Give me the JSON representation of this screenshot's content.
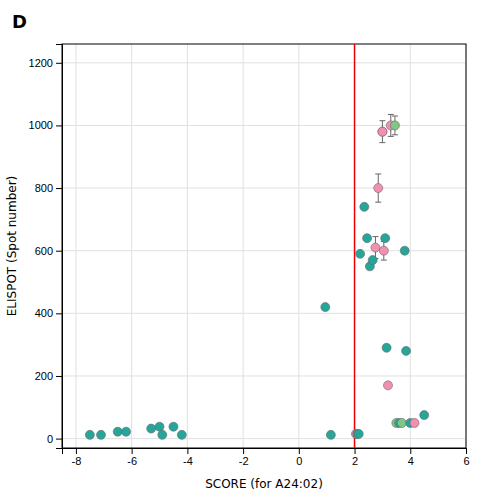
{
  "chart_data": {
    "type": "scatter",
    "title": "D",
    "xlabel": "SCORE (for A24:02)",
    "ylabel": "ELISPOT (Spot number)",
    "xlim": [
      -8.5,
      6.0
    ],
    "ylim": [
      -30,
      1260
    ],
    "xticks": [
      -8,
      -6,
      -4,
      -2,
      0,
      2,
      4,
      6
    ],
    "yticks": [
      0,
      200,
      400,
      600,
      800,
      1000,
      1200
    ],
    "grid": true,
    "vline": {
      "x": 2,
      "color": "#ee0000"
    },
    "x": [
      -7.5,
      -7.1,
      -6.5,
      -6.2,
      -5.3,
      -5.0,
      -4.9,
      -4.5,
      -4.2,
      0.95,
      1.15,
      2.05,
      2.1,
      2.15,
      2.2,
      2.35,
      2.45,
      2.55,
      2.65,
      2.75,
      2.85,
      3.0,
      3.0,
      3.05,
      3.1,
      3.15,
      3.2,
      3.3,
      3.45,
      3.5,
      3.6,
      3.7,
      3.8,
      3.85,
      4.0,
      4.15,
      4.5
    ],
    "values": [
      12,
      12,
      22,
      22,
      32,
      38,
      12,
      38,
      12,
      420,
      12,
      15,
      15,
      15,
      590,
      740,
      640,
      550,
      570,
      610,
      800,
      980,
      980,
      600,
      640,
      290,
      170,
      1000,
      1000,
      50,
      50,
      50,
      600,
      280,
      50,
      50,
      75
    ],
    "yerr": [
      0,
      0,
      0,
      0,
      0,
      0,
      0,
      0,
      0,
      0,
      0,
      10,
      0,
      0,
      0,
      0,
      0,
      0,
      0,
      35,
      45,
      0,
      35,
      30,
      0,
      0,
      0,
      35,
      30,
      0,
      0,
      0,
      0,
      0,
      0,
      0,
      0
    ],
    "colors": [
      "#26a69a",
      "#26a69a",
      "#26a69a",
      "#26a69a",
      "#26a69a",
      "#26a69a",
      "#26a69a",
      "#26a69a",
      "#26a69a",
      "#26a69a",
      "#26a69a",
      "#f48fb1",
      "#26a69a",
      "#26a69a",
      "#26a69a",
      "#26a69a",
      "#26a69a",
      "#26a69a",
      "#26a69a",
      "#f48fb1",
      "#f48fb1",
      "#f48fb1",
      "#f48fb1",
      "#f48fb1",
      "#26a69a",
      "#26a69a",
      "#f48fb1",
      "#f48fb1",
      "#81c784",
      "#81c784",
      "#26a69a",
      "#81c784",
      "#26a69a",
      "#26a69a",
      "#26a69a",
      "#f48fb1",
      "#26a69a"
    ]
  }
}
